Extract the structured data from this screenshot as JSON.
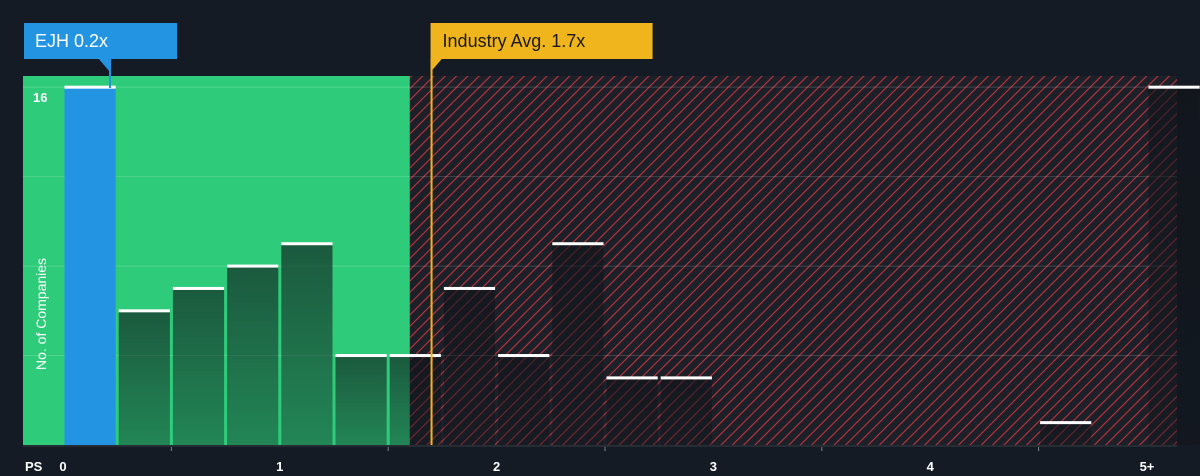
{
  "chart_data": {
    "type": "bar",
    "xlabel": "PS",
    "ylabel": "No. of Companies",
    "x_ticks": [
      "0",
      "1",
      "2",
      "3",
      "4",
      "5+"
    ],
    "y_ticks": [
      "16"
    ],
    "xlim": [
      0,
      5
    ],
    "ylim": [
      0,
      16.5
    ],
    "bin_width": 0.25,
    "bins": [
      {
        "start": 0.0,
        "count": 16
      },
      {
        "start": 0.25,
        "count": 6
      },
      {
        "start": 0.5,
        "count": 7
      },
      {
        "start": 0.75,
        "count": 8
      },
      {
        "start": 1.0,
        "count": 9
      },
      {
        "start": 1.25,
        "count": 4
      },
      {
        "start": 1.5,
        "count": 4
      },
      {
        "start": 1.75,
        "count": 7
      },
      {
        "start": 2.0,
        "count": 4
      },
      {
        "start": 2.25,
        "count": 9
      },
      {
        "start": 2.5,
        "count": 3
      },
      {
        "start": 2.75,
        "count": 3
      },
      {
        "start": 3.0,
        "count": 0
      },
      {
        "start": 3.25,
        "count": 0
      },
      {
        "start": 3.5,
        "count": 0
      },
      {
        "start": 3.75,
        "count": 0
      },
      {
        "start": 4.0,
        "count": 0
      },
      {
        "start": 4.25,
        "count": 0
      },
      {
        "start": 4.5,
        "count": 1
      },
      {
        "start": 4.75,
        "count": 0
      },
      {
        "start": 5.0,
        "count": 16
      }
    ],
    "company": {
      "label": "EJH 0.2x",
      "value": 0.2
    },
    "industry_avg": {
      "label": "Industry Avg. 1.7x",
      "value": 1.7
    },
    "fair_zone_end": 1.6,
    "colors": {
      "background": "#151b24",
      "fair_zone": "#2ecc7a",
      "company_bar": "#2394e1",
      "overvalued_stripe": "#c0343c",
      "industry_line": "#f0b41c",
      "bar_cap": "#ffffff"
    }
  }
}
